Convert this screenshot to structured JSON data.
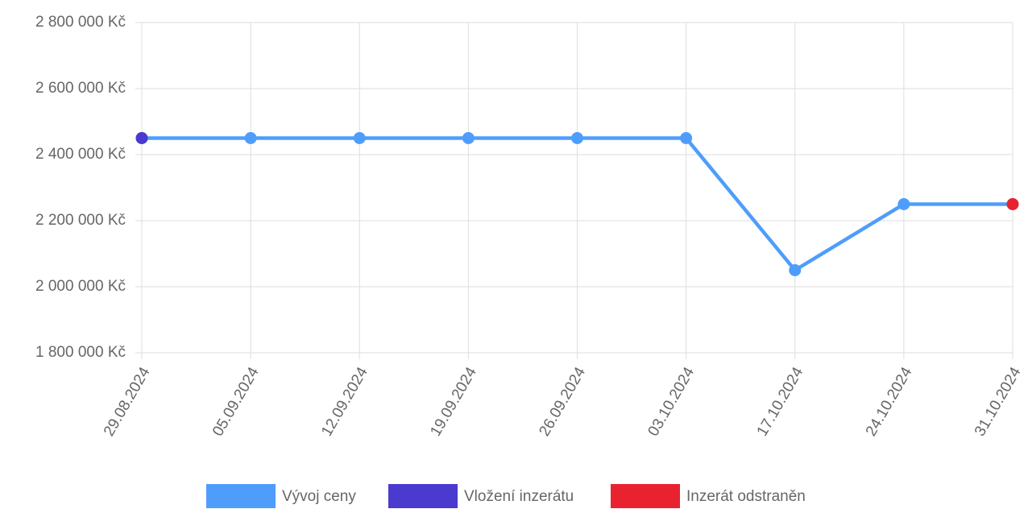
{
  "chart_data": {
    "type": "line",
    "categories": [
      "29.08.2024",
      "05.09.2024",
      "12.09.2024",
      "19.09.2024",
      "26.09.2024",
      "03.10.2024",
      "17.10.2024",
      "24.10.2024",
      "31.10.2024"
    ],
    "series": [
      {
        "name": "Vývoj ceny",
        "color": "#4f9dfb",
        "values": [
          2450000,
          2450000,
          2450000,
          2450000,
          2450000,
          2450000,
          2050000,
          2250000,
          2250000
        ]
      },
      {
        "name": "Vložení inzerátu",
        "color": "#4a3acd",
        "values": [
          2450000,
          null,
          null,
          null,
          null,
          null,
          null,
          null,
          null
        ]
      },
      {
        "name": "Inzerát odstraněn",
        "color": "#e8232f",
        "values": [
          null,
          null,
          null,
          null,
          null,
          null,
          null,
          null,
          2250000
        ]
      }
    ],
    "ylim": [
      1800000,
      2800000
    ],
    "yticks": [
      {
        "value": 1800000,
        "label": "1 800 000 Kč"
      },
      {
        "value": 2000000,
        "label": "2 000 000 Kč"
      },
      {
        "value": 2200000,
        "label": "2 200 000 Kč"
      },
      {
        "value": 2400000,
        "label": "2 400 000 Kč"
      },
      {
        "value": 2600000,
        "label": "2 600 000 Kč"
      },
      {
        "value": 2800000,
        "label": "2 800 000 Kč"
      }
    ],
    "grid": true,
    "legend": "bottom"
  }
}
